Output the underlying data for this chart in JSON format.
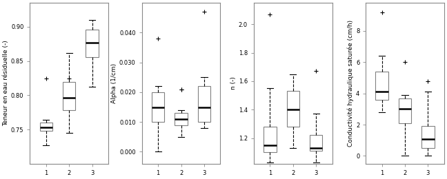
{
  "plots": [
    {
      "ylabel": "Teneur en eau résiduelle (-)",
      "yticks": [
        0.75,
        0.8,
        0.85,
        0.9
      ],
      "ylim": [
        0.7,
        0.935
      ],
      "boxes": [
        {
          "group": 1,
          "q1": 0.748,
          "median": 0.753,
          "q3": 0.76,
          "whislo": 0.727,
          "whishi": 0.764,
          "fliers": [
            0.825
          ]
        },
        {
          "group": 2,
          "q1": 0.778,
          "median": 0.796,
          "q3": 0.82,
          "whislo": 0.745,
          "whishi": 0.862,
          "fliers": [
            0.825
          ]
        },
        {
          "group": 3,
          "q1": 0.856,
          "median": 0.877,
          "q3": 0.896,
          "whislo": 0.812,
          "whishi": 0.91,
          "fliers": []
        }
      ]
    },
    {
      "ylabel": "Alpha (1/cm)",
      "yticks": [
        0.0,
        0.01,
        0.02,
        0.03,
        0.04
      ],
      "ylim": [
        -0.004,
        0.05
      ],
      "boxes": [
        {
          "group": 1,
          "q1": 0.01,
          "median": 0.015,
          "q3": 0.02,
          "whislo": 0.0,
          "whishi": 0.022,
          "fliers": [
            0.038
          ]
        },
        {
          "group": 2,
          "q1": 0.009,
          "median": 0.011,
          "q3": 0.013,
          "whislo": 0.005,
          "whishi": 0.014,
          "fliers": [
            0.021,
            0.021
          ]
        },
        {
          "group": 3,
          "q1": 0.01,
          "median": 0.015,
          "q3": 0.022,
          "whislo": 0.008,
          "whishi": 0.025,
          "fliers": [
            0.047
          ]
        }
      ]
    },
    {
      "ylabel": "n (-)",
      "yticks": [
        1.2,
        1.4,
        1.6,
        1.8,
        2.0
      ],
      "ylim": [
        1.02,
        2.15
      ],
      "boxes": [
        {
          "group": 1,
          "q1": 1.1,
          "median": 1.15,
          "q3": 1.28,
          "whislo": 1.03,
          "whishi": 1.55,
          "fliers": [
            2.07
          ]
        },
        {
          "group": 2,
          "q1": 1.28,
          "median": 1.4,
          "q3": 1.53,
          "whislo": 1.13,
          "whishi": 1.65,
          "fliers": []
        },
        {
          "group": 3,
          "q1": 1.11,
          "median": 1.13,
          "q3": 1.22,
          "whislo": 1.03,
          "whishi": 1.37,
          "fliers": [
            1.67
          ]
        }
      ]
    },
    {
      "ylabel": "Conductivité hydraulique saturée (cm/h)",
      "yticks": [
        0,
        2,
        4,
        6,
        8
      ],
      "ylim": [
        -0.5,
        9.8
      ],
      "boxes": [
        {
          "group": 1,
          "q1": 3.6,
          "median": 4.1,
          "q3": 5.4,
          "whislo": 2.8,
          "whishi": 6.4,
          "fliers": [
            9.2
          ]
        },
        {
          "group": 2,
          "q1": 2.1,
          "median": 3.0,
          "q3": 3.7,
          "whislo": 0.0,
          "whishi": 3.9,
          "fliers": [
            6.0
          ]
        },
        {
          "group": 3,
          "q1": 0.5,
          "median": 1.1,
          "q3": 1.9,
          "whislo": 0.0,
          "whishi": 4.1,
          "fliers": [
            4.8
          ]
        }
      ]
    }
  ],
  "box_facecolor": "#ffffff",
  "box_edgecolor": "#808080",
  "median_color": "#000000",
  "whisker_color": "#000000",
  "flier_color": "#000000",
  "background_color": "#ffffff",
  "xlabel_values": [
    "1",
    "2",
    "3"
  ],
  "fontsize": 6.5,
  "tick_fontsize": 6.0
}
